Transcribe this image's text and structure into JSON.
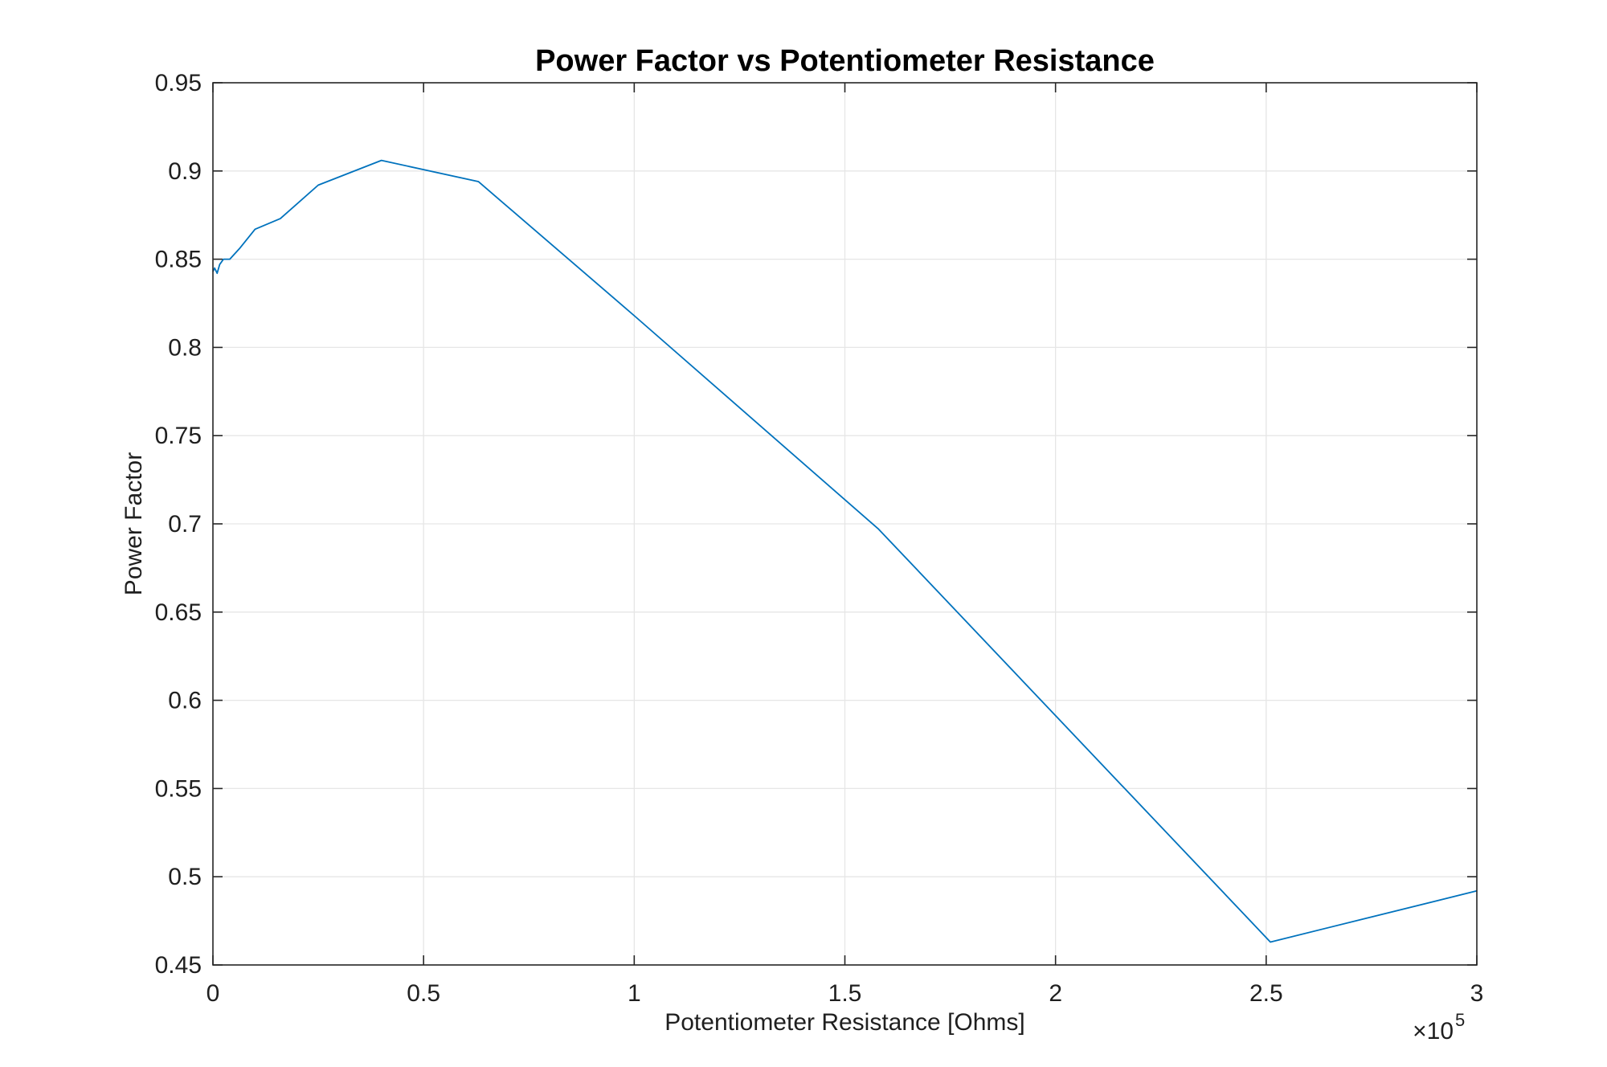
{
  "chart_data": {
    "type": "line",
    "title": "Power Factor vs Potentiometer Resistance",
    "xlabel": "Potentiometer Resistance [Ohms]",
    "ylabel": "Power Factor",
    "x_exponent_multiplier": "×10",
    "x_exponent_power": "5",
    "xlim": [
      0,
      300000
    ],
    "ylim": [
      0.45,
      0.95
    ],
    "grid": true,
    "x_ticks": [
      0,
      50000,
      100000,
      150000,
      200000,
      250000,
      300000
    ],
    "x_tick_labels": [
      "0",
      "0.5",
      "1",
      "1.5",
      "2",
      "2.5",
      "3"
    ],
    "y_ticks": [
      0.45,
      0.5,
      0.55,
      0.6,
      0.65,
      0.7,
      0.75,
      0.8,
      0.85,
      0.9,
      0.95
    ],
    "y_tick_labels": [
      "0.45",
      "0.5",
      "0.55",
      "0.6",
      "0.65",
      "0.7",
      "0.75",
      "0.8",
      "0.85",
      "0.9",
      "0.95"
    ],
    "line_color": "#0072BD",
    "series": [
      {
        "x": [
          0,
          400,
          1000,
          1600,
          2500,
          4000,
          6300,
          10000,
          16000,
          25000,
          40000,
          63000,
          100000,
          158000,
          251000,
          300000
        ],
        "y": [
          0.843,
          0.845,
          0.842,
          0.847,
          0.85,
          0.85,
          0.856,
          0.867,
          0.873,
          0.892,
          0.906,
          0.894,
          0.818,
          0.697,
          0.463,
          0.492
        ]
      }
    ]
  }
}
